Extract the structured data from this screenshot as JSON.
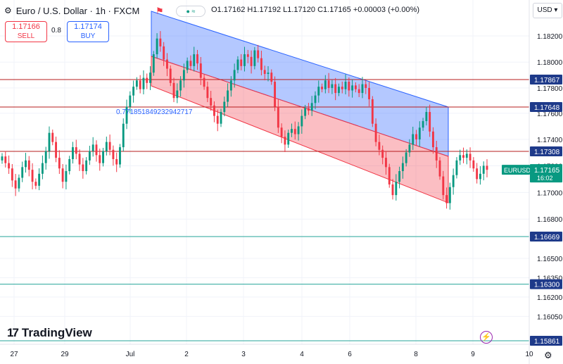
{
  "header": {
    "title": "Euro / U.S. Dollar · 1h · FXCM",
    "ohlc": "O1.17162 H1.17192 L1.17120 C1.17165 +0.00003 (+0.00%)",
    "currency": "USD"
  },
  "trade": {
    "sell_price": "1.17166",
    "sell_label": "SELL",
    "buy_price": "1.17174",
    "buy_label": "BUY",
    "spread": "0.8"
  },
  "logo": {
    "text": "TradingView"
  },
  "colors": {
    "up": "#089981",
    "down": "#f23645",
    "line_red": "#b71c1c",
    "line_teal": "#26a69a",
    "channel_blue": "#2962ff",
    "channel_red": "#f23645"
  },
  "chart_data": {
    "type": "candlestick",
    "symbol": "EURUSD",
    "last_price": "1.17165",
    "countdown": "16:02",
    "price_scale": [
      "1.18200",
      "1.18000",
      "1.17800",
      "1.17600",
      "1.17400",
      "1.17200",
      "1.17000",
      "1.16800",
      "1.16500",
      "1.16350",
      "1.16200",
      "1.16050"
    ],
    "x_ticks": [
      "27",
      "29",
      "Jul",
      "2",
      "3",
      "4",
      "6",
      "8",
      "9",
      "10"
    ],
    "horizontal_levels": [
      {
        "label": "1.17867",
        "price": 1.17867,
        "color": "#b71c1c"
      },
      {
        "label": "1.17648",
        "price": 1.17648,
        "color": "#b71c1c"
      },
      {
        "label": "1.17308",
        "price": 1.17308,
        "color": "#b71c1c"
      },
      {
        "label": "1.16669",
        "price": 1.16669,
        "color": "#26a69a"
      },
      {
        "label": "1.16300",
        "price": 1.163,
        "color": "#26a69a"
      },
      {
        "label": "1.15861",
        "price": 1.15861,
        "color": "#26a69a"
      }
    ],
    "fib_annotation": "0.771851849232942717",
    "close_series": [
      1.1727,
      1.1722,
      1.1718,
      1.1709,
      1.1703,
      1.1711,
      1.1719,
      1.1724,
      1.1717,
      1.1708,
      1.1705,
      1.1714,
      1.1722,
      1.1731,
      1.1745,
      1.1738,
      1.1726,
      1.1718,
      1.1708,
      1.1716,
      1.1725,
      1.1734,
      1.1729,
      1.1721,
      1.1716,
      1.1724,
      1.1731,
      1.1736,
      1.1728,
      1.1722,
      1.1731,
      1.1738,
      1.1732,
      1.1725,
      1.1721,
      1.1734,
      1.1752,
      1.1765,
      1.1774,
      1.1781,
      1.1786,
      1.1779,
      1.1788,
      1.1784,
      1.1792,
      1.1806,
      1.1818,
      1.1812,
      1.1802,
      1.1795,
      1.1784,
      1.1772,
      1.1778,
      1.1786,
      1.1794,
      1.1801,
      1.1797,
      1.1806,
      1.1799,
      1.1788,
      1.1781,
      1.1772,
      1.1766,
      1.1758,
      1.1752,
      1.1761,
      1.1769,
      1.1778,
      1.1786,
      1.1794,
      1.1802,
      1.1797,
      1.1806,
      1.1804,
      1.1797,
      1.1809,
      1.1803,
      1.1794,
      1.1791,
      1.1792,
      1.1785,
      1.1765,
      1.1749,
      1.1742,
      1.1736,
      1.1745,
      1.1748,
      1.1744,
      1.175,
      1.1758,
      1.1764,
      1.1762,
      1.1768,
      1.1774,
      1.1781,
      1.1779,
      1.1786,
      1.178,
      1.1783,
      1.1776,
      1.1781,
      1.1779,
      1.1785,
      1.1778,
      1.1782,
      1.1779,
      1.1776,
      1.1783,
      1.178,
      1.1771,
      1.1752,
      1.1738,
      1.1732,
      1.1726,
      1.1719,
      1.1706,
      1.1698,
      1.1708,
      1.1716,
      1.1722,
      1.173,
      1.1736,
      1.1744,
      1.174,
      1.1749,
      1.1754,
      1.1761,
      1.1746,
      1.1734,
      1.1724,
      1.1712,
      1.1698,
      1.1692,
      1.1704,
      1.1713,
      1.1724,
      1.1728,
      1.1726,
      1.1729,
      1.1724,
      1.1718,
      1.171,
      1.1714,
      1.172,
      1.1717
    ]
  }
}
